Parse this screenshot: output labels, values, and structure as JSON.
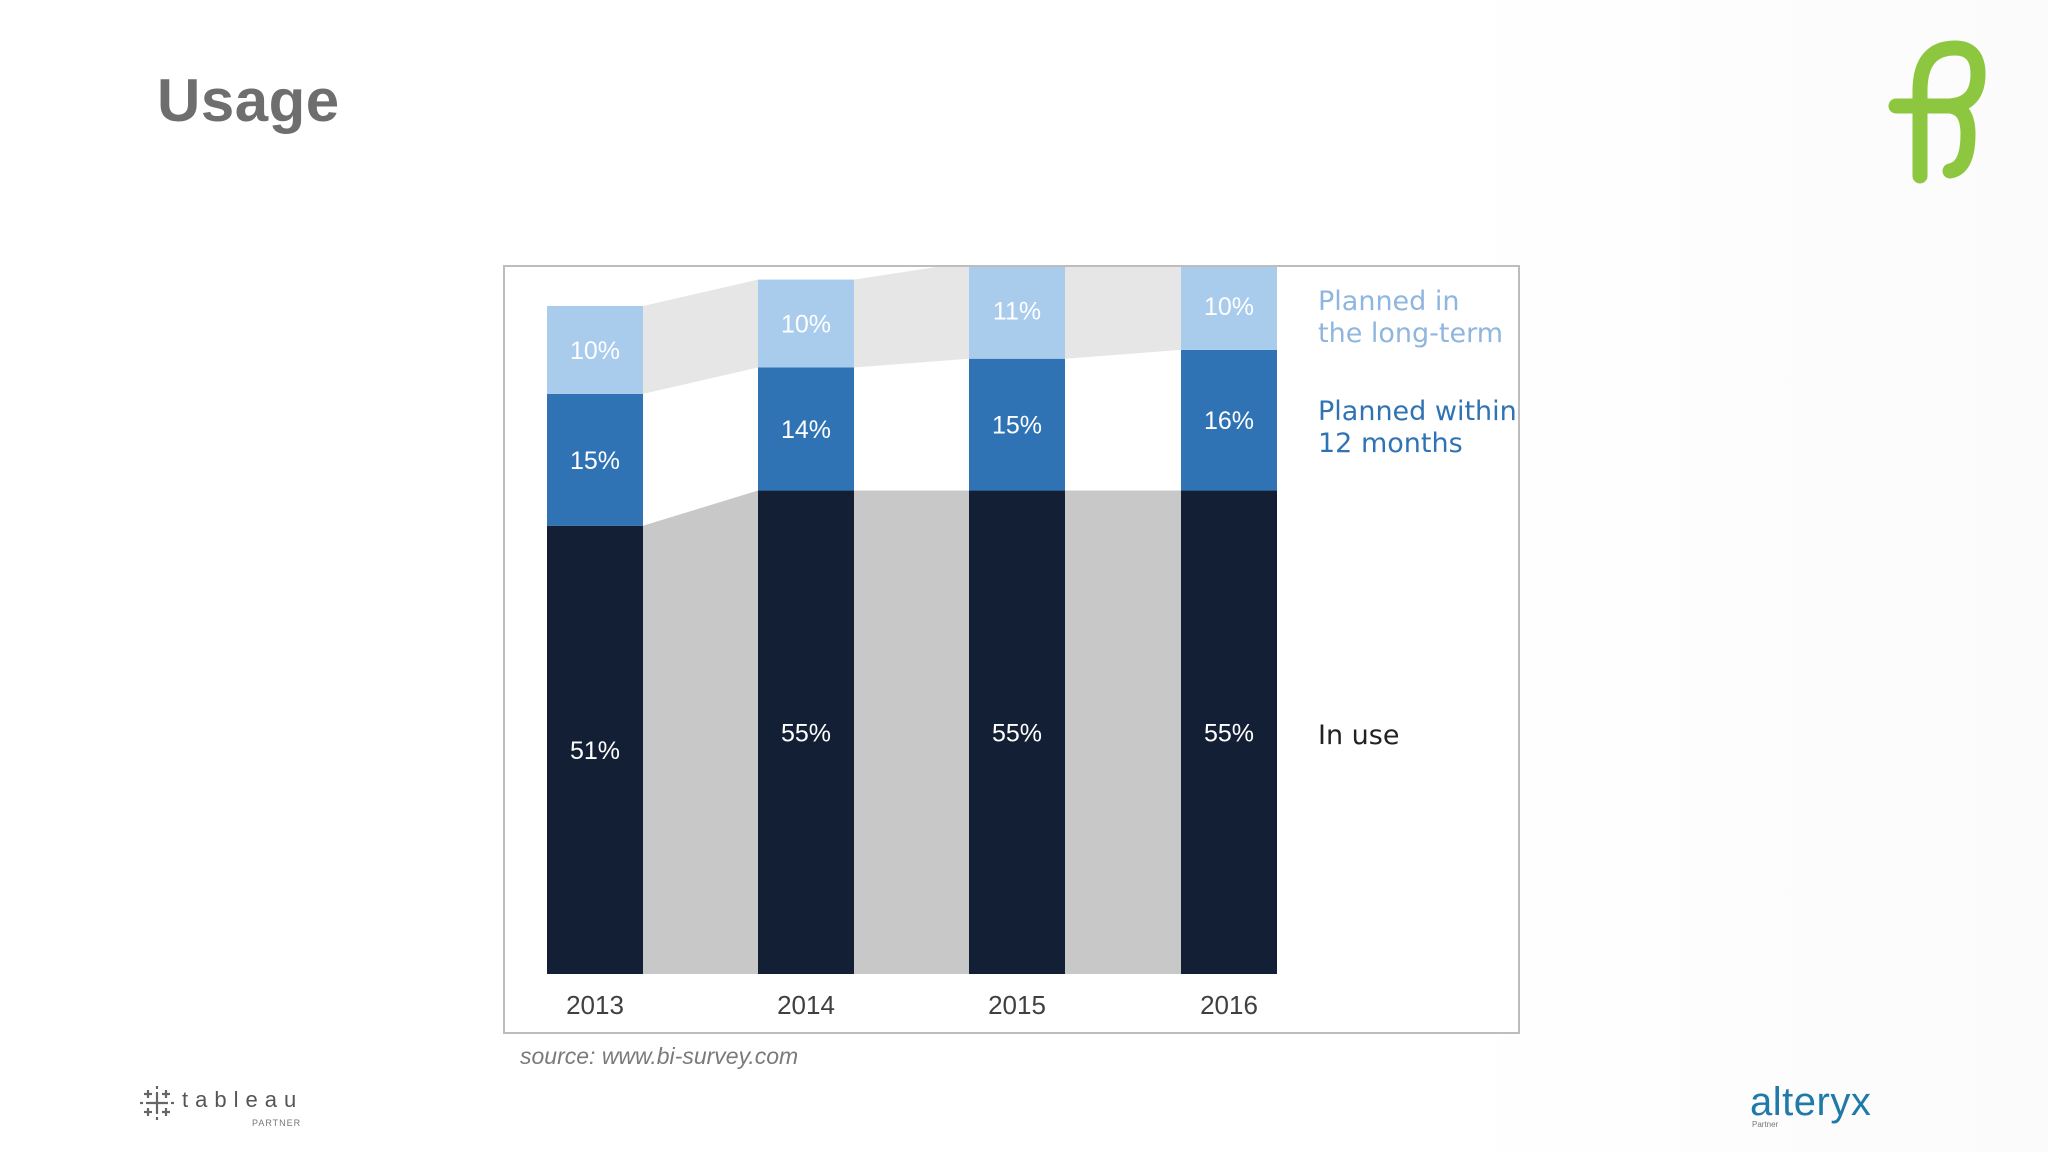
{
  "slide": {
    "title": "Usage",
    "source": "source: www.bi-survey.com",
    "logo_left": {
      "name": "tableau",
      "sub": "PARTNER"
    },
    "logo_right": {
      "name": "alteryx",
      "sub": "Partner"
    }
  },
  "colors": {
    "in_use": "#131f34",
    "planned_12m": "#2f73b5",
    "planned_long": "#a9cbec",
    "band_dark": "#c8c8c8",
    "band_light": "#e6e6e6",
    "legend_long": "#8fb6de",
    "legend_12m": "#2f73b5",
    "legend_in_use": "#222222",
    "logo_green": "#8dc63f",
    "tableau_grey": "#666666"
  },
  "chart_data": {
    "type": "bar",
    "stacked": true,
    "categories": [
      "2013",
      "2014",
      "2015",
      "2016"
    ],
    "series": [
      {
        "name": "In use",
        "values": [
          51,
          55,
          55,
          55
        ],
        "labels": [
          "51%",
          "55%",
          "55%",
          "55%"
        ]
      },
      {
        "name": "Planned within 12 months",
        "values": [
          15,
          14,
          15,
          16
        ],
        "labels": [
          "15%",
          "14%",
          "15%",
          "16%"
        ]
      },
      {
        "name": "Planned in the long-term",
        "values": [
          10,
          10,
          11,
          10
        ],
        "labels": [
          "10%",
          "10%",
          "11%",
          "10%"
        ]
      }
    ],
    "legend": [
      {
        "series": "Planned in the long-term",
        "lines": [
          "Planned in",
          "the long-term"
        ]
      },
      {
        "series": "Planned within 12 months",
        "lines": [
          "Planned within",
          "12 months"
        ]
      },
      {
        "series": "In use",
        "lines": [
          "In use"
        ]
      }
    ],
    "ylim": [
      0,
      80
    ],
    "title": "",
    "xlabel": "",
    "ylabel": ""
  }
}
